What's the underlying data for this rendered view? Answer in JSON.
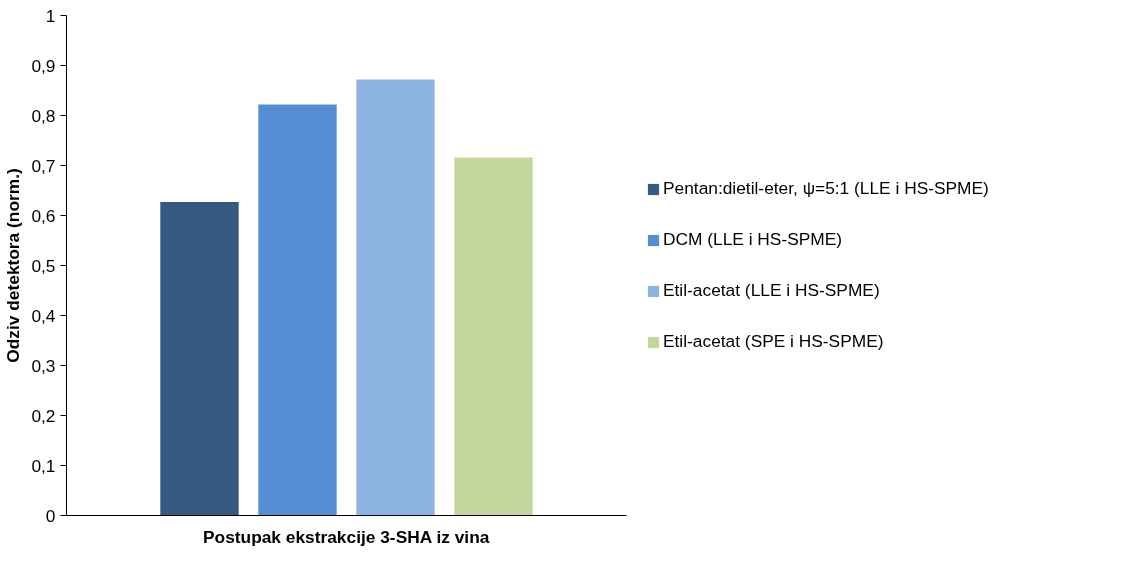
{
  "chart_data": {
    "type": "bar",
    "xlabel": "Postupak ekstrakcije 3-SHA iz vina",
    "ylabel": "Odziv detektora (norm.)",
    "categories": [
      null
    ],
    "series": [
      {
        "name": "Pentan:dietil-eter, ψ=5:1 (LLE i HS-SPME)",
        "color": "#375a82",
        "values": [
          0.627
        ]
      },
      {
        "name": "DCM (LLE i HS-SPME)",
        "color": "#558ed5",
        "values": [
          0.822
        ]
      },
      {
        "name": "Etil-acetat (LLE i HS-SPME)",
        "color": "#8eb4e3",
        "values": [
          0.872
        ]
      },
      {
        "name": "Etil-acetat (SPE i HS-SPME)",
        "color": "#c3d69b",
        "values": [
          0.716
        ]
      }
    ],
    "ylim": [
      0,
      1
    ],
    "yticks": [
      0,
      {
        "value": 0.1,
        "label": "0,1"
      },
      {
        "value": 0.2,
        "label": "0,2"
      },
      {
        "value": 0.3,
        "label": "0,3"
      },
      {
        "value": 0.4,
        "label": "0,4"
      },
      {
        "value": 0.5,
        "label": "0,5"
      },
      {
        "value": 0.6,
        "label": "0,6"
      },
      {
        "value": 0.7,
        "label": "0,7"
      },
      {
        "value": 0.8,
        "label": "0,8"
      },
      {
        "value": 0.9,
        "label": "0,9"
      },
      1
    ],
    "grid": false,
    "legend": "right"
  }
}
